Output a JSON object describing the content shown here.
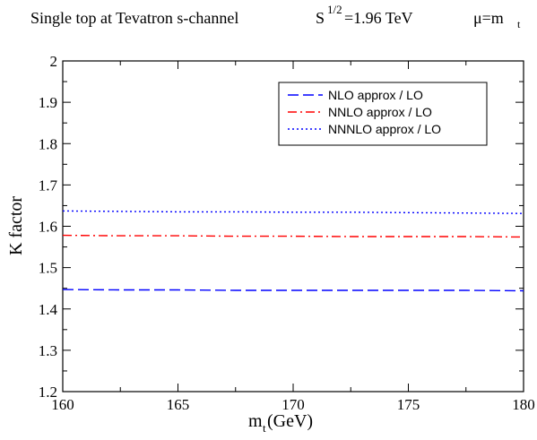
{
  "chart_data": {
    "type": "line",
    "title_parts": {
      "main": "Single top at  Tevatron   s-channel",
      "s_base": "S",
      "s_exp": "1/2",
      "s_value": "=1.96 TeV",
      "mu": "μ=m",
      "mu_sub": "t"
    },
    "xlabel": {
      "base": "m",
      "sub": "t",
      "rest": " (GeV)"
    },
    "ylabel": "K  factor",
    "xlim": [
      160,
      180
    ],
    "ylim": [
      1.2,
      2.0
    ],
    "xticks": [
      "160",
      "165",
      "170",
      "175",
      "180"
    ],
    "yticks": [
      "1.2",
      "1.3",
      "1.4",
      "1.5",
      "1.6",
      "1.7",
      "1.8",
      "1.9",
      "2"
    ],
    "legend_position": "top-right",
    "series": [
      {
        "name": "NLO approx / LO",
        "color": "#0000ff",
        "dash": "dashed",
        "x": [
          160,
          162.5,
          165,
          167.5,
          170,
          172.5,
          175,
          177.5,
          180
        ],
        "y": [
          1.447,
          1.446,
          1.446,
          1.445,
          1.445,
          1.445,
          1.445,
          1.445,
          1.444
        ]
      },
      {
        "name": "NNLO approx / LO",
        "color": "#ff0000",
        "dash": "dashdot",
        "x": [
          160,
          162.5,
          165,
          167.5,
          170,
          172.5,
          175,
          177.5,
          180
        ],
        "y": [
          1.578,
          1.577,
          1.577,
          1.576,
          1.576,
          1.575,
          1.575,
          1.575,
          1.574
        ]
      },
      {
        "name": "NNNLO approx / LO",
        "color": "#0000ff",
        "dash": "dotted",
        "x": [
          160,
          162.5,
          165,
          167.5,
          170,
          172.5,
          175,
          177.5,
          180
        ],
        "y": [
          1.637,
          1.636,
          1.635,
          1.635,
          1.634,
          1.634,
          1.633,
          1.632,
          1.631
        ]
      }
    ]
  }
}
